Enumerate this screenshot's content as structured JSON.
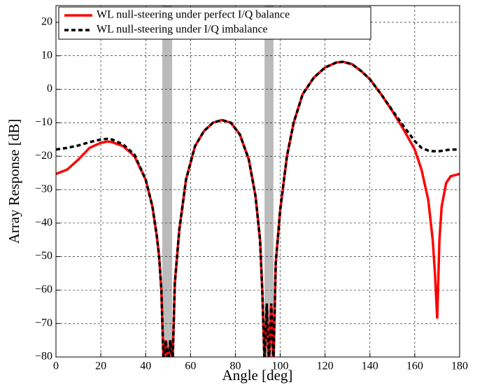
{
  "chart_data": {
    "type": "line",
    "x_label": "Angle [deg]",
    "y_label": "Array Response [dB]",
    "x": [
      0,
      5,
      10,
      15,
      20,
      23,
      25,
      30,
      35,
      40,
      43,
      45,
      46,
      47,
      48,
      49,
      50,
      51,
      52,
      53,
      55,
      58,
      62,
      66,
      70,
      74,
      78,
      82,
      86,
      89,
      91,
      92,
      93,
      94,
      95,
      96,
      97,
      98,
      100,
      103,
      106,
      110,
      115,
      120,
      125,
      128,
      132,
      136,
      140,
      145,
      150,
      155,
      160,
      163,
      166,
      168,
      169,
      170,
      171,
      172,
      174,
      176,
      180
    ],
    "series": [
      {
        "name": "WL null-steering under perfect I/Q balance",
        "color": "#ff0000",
        "dash": false,
        "values": [
          -25.3,
          -24,
          -21,
          -17.5,
          -16,
          -15.6,
          -15.8,
          -17,
          -20,
          -27,
          -35,
          -44,
          -50,
          -60,
          -82,
          -75,
          -82,
          -75,
          -82,
          -58,
          -42,
          -27,
          -17,
          -12.5,
          -10,
          -9.2,
          -10,
          -13.5,
          -21,
          -32,
          -45,
          -60,
          -82,
          -64,
          -82,
          -64,
          -82,
          -52,
          -36,
          -20,
          -10,
          -1.5,
          3.5,
          6.5,
          8,
          8.2,
          7.5,
          5.5,
          3,
          -1.5,
          -6.5,
          -12,
          -18,
          -24,
          -33,
          -45,
          -55,
          -68.5,
          -45,
          -35,
          -28,
          -26,
          -25.3
        ]
      },
      {
        "name": "WL null-steering under I/Q imbalance",
        "color": "#000000",
        "dash": true,
        "values": [
          -18,
          -17.5,
          -16.8,
          -15.8,
          -15,
          -14.8,
          -15,
          -16.5,
          -19.5,
          -27,
          -35,
          -44,
          -50,
          -60,
          -82,
          -75,
          -82,
          -75,
          -82,
          -58,
          -42,
          -27,
          -17,
          -12.5,
          -10,
          -9.2,
          -10,
          -13.5,
          -21,
          -32,
          -45,
          -60,
          -82,
          -64,
          -82,
          -64,
          -82,
          -52,
          -36,
          -20,
          -10,
          -1.5,
          3.5,
          6.5,
          8,
          8.2,
          7.5,
          5.5,
          3,
          -1.5,
          -6.3,
          -11,
          -15.5,
          -17.5,
          -18.3,
          -18.5,
          -18.5,
          -18.5,
          -18.5,
          -18.4,
          -18.2,
          -18,
          -18
        ]
      }
    ],
    "shaded_regions": [
      [
        47.4,
        51.8
      ],
      [
        93,
        97
      ]
    ],
    "shade_color": "#bbbbbb",
    "xlim": [
      0,
      180
    ],
    "ylim": [
      -80,
      25
    ],
    "xticks": [
      0,
      20,
      40,
      60,
      80,
      100,
      120,
      140,
      160,
      180
    ],
    "yticks": [
      {
        "value": -80,
        "label": "−80"
      },
      {
        "value": -70,
        "label": "−70"
      },
      {
        "value": -60,
        "label": "−60"
      },
      {
        "value": -50,
        "label": "−50"
      },
      {
        "value": -40,
        "label": "−40"
      },
      {
        "value": -30,
        "label": "−30"
      },
      {
        "value": -20,
        "label": "−20"
      },
      {
        "value": -10,
        "label": "−10"
      },
      0,
      10,
      20
    ],
    "grid": true,
    "legend": "upper left"
  }
}
